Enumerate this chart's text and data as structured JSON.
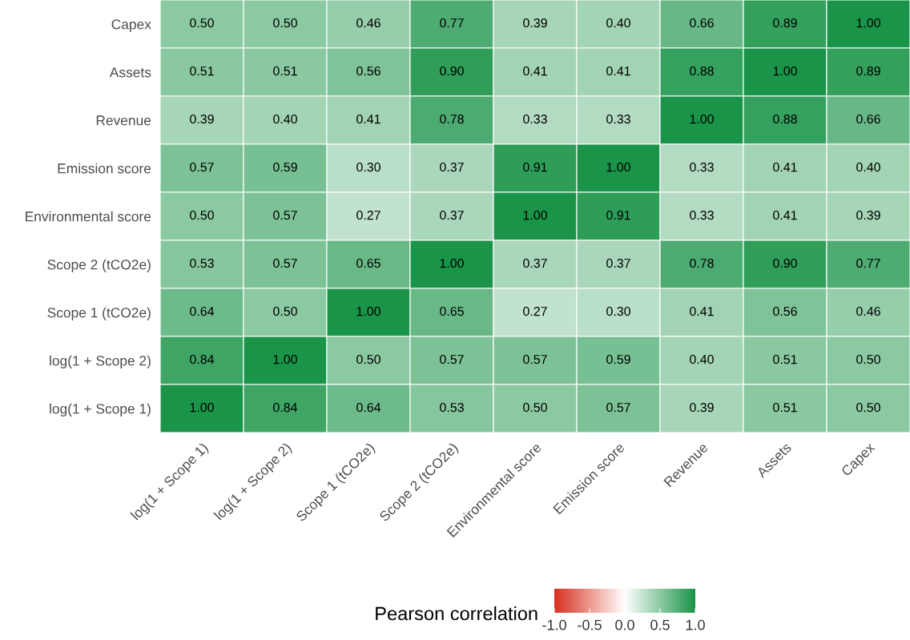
{
  "chart_data": {
    "type": "heatmap",
    "categories": [
      "log(1 + Scope 1)",
      "log(1 + Scope 2)",
      "Scope 1 (tCO2e)",
      "Scope 2 (tCO2e)",
      "Environmental score",
      "Emission score",
      "Revenue",
      "Assets",
      "Capex"
    ],
    "y_categories": [
      "Capex",
      "Assets",
      "Revenue",
      "Emission score",
      "Environmental score",
      "Scope 2 (tCO2e)",
      "Scope 1 (tCO2e)",
      "log(1 + Scope 2)",
      "log(1 + Scope 1)"
    ],
    "cells": [
      [
        0.5,
        0.5,
        0.46,
        0.77,
        0.39,
        0.4,
        0.66,
        0.89,
        1.0
      ],
      [
        0.51,
        0.51,
        0.56,
        0.9,
        0.41,
        0.41,
        0.88,
        1.0,
        0.89
      ],
      [
        0.39,
        0.4,
        0.41,
        0.78,
        0.33,
        0.33,
        1.0,
        0.88,
        0.66
      ],
      [
        0.57,
        0.59,
        0.3,
        0.37,
        0.91,
        1.0,
        0.33,
        0.41,
        0.4
      ],
      [
        0.5,
        0.57,
        0.27,
        0.37,
        1.0,
        0.91,
        0.33,
        0.41,
        0.39
      ],
      [
        0.53,
        0.57,
        0.65,
        1.0,
        0.37,
        0.37,
        0.78,
        0.9,
        0.77
      ],
      [
        0.64,
        0.5,
        1.0,
        0.65,
        0.27,
        0.3,
        0.41,
        0.56,
        0.46
      ],
      [
        0.84,
        1.0,
        0.5,
        0.57,
        0.57,
        0.59,
        0.4,
        0.51,
        0.5
      ],
      [
        1.0,
        0.84,
        0.64,
        0.53,
        0.5,
        0.57,
        0.39,
        0.51,
        0.5
      ]
    ],
    "cell_labels": [
      [
        "0.50",
        "0.50",
        "0.46",
        "0.77",
        "0.39",
        "0.40",
        "0.66",
        "0.89",
        "1.00"
      ],
      [
        "0.51",
        "0.51",
        "0.56",
        "0.90",
        "0.41",
        "0.41",
        "0.88",
        "1.00",
        "0.89"
      ],
      [
        "0.39",
        "0.40",
        "0.41",
        "0.78",
        "0.33",
        "0.33",
        "1.00",
        "0.88",
        "0.66"
      ],
      [
        "0.57",
        "0.59",
        "0.30",
        "0.37",
        "0.91",
        "1.00",
        "0.33",
        "0.41",
        "0.40"
      ],
      [
        "0.50",
        "0.57",
        "0.27",
        "0.37",
        "1.00",
        "0.91",
        "0.33",
        "0.41",
        "0.39"
      ],
      [
        "0.53",
        "0.57",
        "0.65",
        "1.00",
        "0.37",
        "0.37",
        "0.78",
        "0.90",
        "0.77"
      ],
      [
        "0.64",
        "0.50",
        "1.00",
        "0.65",
        "0.27",
        "0.30",
        "0.41",
        "0.56",
        "0.46"
      ],
      [
        "0.84",
        "1.00",
        "0.50",
        "0.57",
        "0.57",
        "0.59",
        "0.40",
        "0.51",
        "0.50"
      ],
      [
        "1.00",
        "0.84",
        "0.64",
        "0.53",
        "0.50",
        "0.57",
        "0.39",
        "0.51",
        "0.50"
      ]
    ],
    "colors": [
      "#d7301f",
      "#ffffff",
      "#1a9448"
    ],
    "clim": [
      -1,
      1
    ],
    "cticks": [
      {
        "value": -1,
        "label": "-1.0"
      },
      {
        "value": -0.5,
        "label": "-0.5"
      },
      {
        "value": 0,
        "label": "0.0"
      },
      {
        "value": 0.5,
        "label": "0.5"
      },
      {
        "value": 1,
        "label": "1.0"
      }
    ],
    "clabel": "Pearson correlation"
  }
}
